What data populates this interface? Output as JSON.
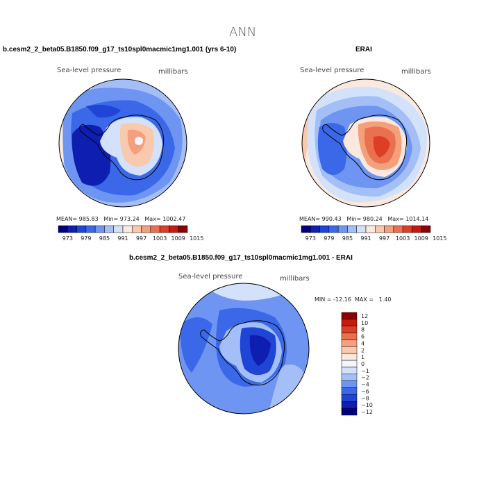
{
  "chart_data": {
    "type": "heatmap",
    "title": "ANN",
    "panels": [
      {
        "id": "model",
        "title": "b.cesm2_2_beta05.B1850.f09_g17_ts10spl0macmic1mg1.001 (yrs 6-10)",
        "variable": "Sea-level pressure",
        "units": "millibars",
        "stats": {
          "mean_label": "MEAN=",
          "mean": "985.83",
          "min_label": "Min=",
          "min": "973.24",
          "max_label": "Max=",
          "max": "1002.47"
        }
      },
      {
        "id": "obs",
        "title": "ERAI",
        "variable": "Sea-level pressure",
        "units": "millibars",
        "stats": {
          "mean_label": "MEAN=",
          "mean": "990.43",
          "min_label": "Min=",
          "min": "980.24",
          "max_label": "Max=",
          "max": "1014.14"
        }
      },
      {
        "id": "diff",
        "title": "b.cesm2_2_beta05.B1850.f09_g17_ts10spl0macmic1mg1.001 - ERAI",
        "variable": "Sea-level pressure",
        "units": "millibars",
        "stats": {
          "min_label": "MIN =",
          "min": "-12.16",
          "max_label": "MAX =",
          "max": "1.40"
        }
      }
    ],
    "abs_colorbar": {
      "levels": [
        "973",
        "979",
        "985",
        "991",
        "997",
        "1003",
        "1009",
        "1015"
      ],
      "colors": [
        "#00007f",
        "#0d1eb0",
        "#1f44d6",
        "#3a68e8",
        "#6e95f2",
        "#a4bff7",
        "#d3e1fb",
        "#fbe9df",
        "#f9c9ad",
        "#f4a07c",
        "#ea7150",
        "#dc3f26",
        "#c41a0f",
        "#8c0000"
      ]
    },
    "diff_colorbar": {
      "levels": [
        "12",
        "10",
        "8",
        "6",
        "4",
        "2",
        "1",
        "0",
        "−1",
        "−2",
        "−4",
        "−6",
        "−8",
        "−10",
        "−12"
      ],
      "colors": [
        "#8c0000",
        "#c41a0f",
        "#dc3f26",
        "#ea7150",
        "#f4a07c",
        "#f9c9ad",
        "#fbe9df",
        "#f4f6fd",
        "#d3e1fb",
        "#a4bff7",
        "#6e95f2",
        "#3a68e8",
        "#1f44d6",
        "#0d1eb0",
        "#00007f"
      ]
    }
  }
}
